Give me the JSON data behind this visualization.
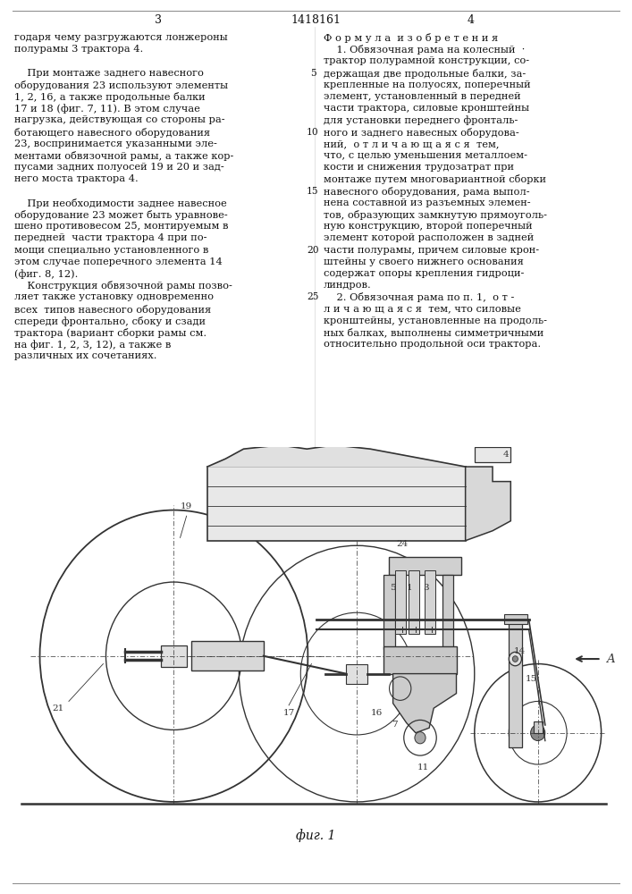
{
  "page_number_left": "3",
  "patent_number": "1418161",
  "page_number_right": "4",
  "left_col_lines": [
    "годаря чему разгружаются лонжероны",
    "полурамы 3 трактора 4.",
    "",
    "    При монтаже заднего навесного",
    "оборудования 23 используют элементы",
    "1, 2, 16, а также продольные балки",
    "17 и 18 (фиг. 7, 11). В этом случае",
    "нагрузка, действующая со стороны ра-",
    "ботающего навесного оборудования",
    "23, воспринимается указанными эле-",
    "ментами обвязочной рамы, а также кор-",
    "пусами задних полуосей 19 и 20 и зад-",
    "него моста трактора 4.",
    "",
    "    При необходимости заднее навесное",
    "оборудование 23 может быть уравнове-",
    "шено противовесом 25, монтируемым в",
    "передней  части трактора 4 при по-",
    "мощи специально установленного в",
    "этом случае поперечного элемента 14",
    "(фиг. 8, 12).",
    "    Конструкция обвязочной рамы позво-",
    "ляет также установку одновременно",
    "всех  типов навесного оборудования",
    "спереди фронтально, сбоку и сзади",
    "трактора (вариант сборки рамы см.",
    "на фиг. 1, 2, 3, 12), а также в",
    "различных их сочетаниях."
  ],
  "right_col_lines": [
    "Ф о р м у л а  и з о б р е т е н и я",
    "    1. Обвязочная рама на колесный  ·",
    "трактор полурамной конструкции, со-",
    "держащая две продольные балки, за-",
    "крепленные на полуосях, поперечный",
    "элемент, установленный в передней",
    "части трактора, силовые кронштейны",
    "для установки переднего фронталь-",
    "ного и заднего навесных оборудова-",
    "ний,  о т л и ч а ю щ а я с я  тем,",
    "что, с целью уменьшения металлоем-",
    "кости и снижения трудозатрат при",
    "монтаже путем многовариантной сборки",
    "навесного оборудования, рама выпол-",
    "нена составной из разъемных элемен-",
    "тов, образующих замкнутую прямоуголь-",
    "ную конструкцию, второй поперечный",
    "элемент которой расположен в задней",
    "части полурамы, причем силовые крон-",
    "штейны у своего нижнего основания",
    "содержат опоры крепления гидроци-",
    "линдров.",
    "    2. Обвязочная рама по п. 1,  о т -",
    "л и ч а ю щ а я с я  тем, что силовые",
    "кронштейны, установленные на продоль-",
    "ных балках, выполнены симметричными",
    "относительно продольной оси трактора."
  ],
  "line_numbers": [
    [
      5,
      3
    ],
    [
      10,
      8
    ],
    [
      15,
      13
    ],
    [
      20,
      18
    ],
    [
      25,
      22
    ]
  ],
  "figure_caption": "фиг. 1",
  "bg_color": "#ffffff",
  "text_color": "#111111",
  "lc_color": "#333333"
}
